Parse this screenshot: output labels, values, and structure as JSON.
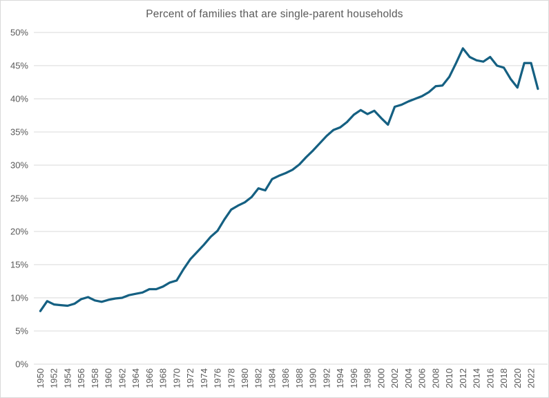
{
  "chart_data": {
    "type": "line",
    "title": "Percent of families that are single-parent households",
    "series_name": "single-parent-share",
    "x": [
      1950,
      1951,
      1952,
      1953,
      1954,
      1955,
      1956,
      1957,
      1958,
      1959,
      1960,
      1961,
      1962,
      1963,
      1964,
      1965,
      1966,
      1967,
      1968,
      1969,
      1970,
      1971,
      1972,
      1973,
      1974,
      1975,
      1976,
      1977,
      1978,
      1979,
      1980,
      1981,
      1982,
      1983,
      1984,
      1985,
      1986,
      1987,
      1988,
      1989,
      1990,
      1991,
      1992,
      1993,
      1994,
      1995,
      1996,
      1997,
      1998,
      1999,
      2000,
      2001,
      2002,
      2003,
      2004,
      2005,
      2006,
      2007,
      2008,
      2009,
      2010,
      2011,
      2012,
      2013,
      2014,
      2015,
      2016,
      2017,
      2018,
      2019,
      2020,
      2021,
      2022,
      2023
    ],
    "values": [
      8.0,
      9.5,
      9.0,
      8.9,
      8.8,
      9.1,
      9.8,
      10.1,
      9.6,
      9.4,
      9.7,
      9.9,
      10.0,
      10.4,
      10.6,
      10.8,
      11.3,
      11.3,
      11.7,
      12.3,
      12.6,
      14.3,
      15.8,
      16.9,
      18.0,
      19.2,
      20.1,
      21.8,
      23.3,
      23.9,
      24.4,
      25.2,
      26.5,
      26.2,
      27.9,
      28.4,
      28.8,
      29.3,
      30.1,
      31.2,
      32.2,
      33.3,
      34.4,
      35.3,
      35.7,
      36.5,
      37.6,
      38.3,
      37.7,
      38.2,
      37.1,
      36.1,
      38.8,
      39.1,
      39.6,
      40.0,
      40.4,
      41.0,
      41.9,
      42.0,
      43.3,
      45.4,
      47.6,
      46.3,
      45.8,
      45.6,
      46.3,
      45.0,
      44.7,
      43.0,
      41.7,
      45.4,
      45.4,
      41.5
    ],
    "xlabel": "",
    "ylabel": "",
    "ylim": [
      0,
      50
    ],
    "ytick_step": 5,
    "ytick_labels": [
      "0%",
      "5%",
      "10%",
      "15%",
      "20%",
      "25%",
      "30%",
      "35%",
      "40%",
      "45%",
      "50%"
    ],
    "xtick_labels": [
      "1950",
      "1952",
      "1954",
      "1956",
      "1958",
      "1960",
      "1962",
      "1964",
      "1966",
      "1968",
      "1970",
      "1972",
      "1974",
      "1976",
      "1978",
      "1980",
      "1982",
      "1984",
      "1986",
      "1988",
      "1990",
      "1992",
      "1994",
      "1996",
      "1998",
      "2000",
      "2002",
      "2004",
      "2006",
      "2008",
      "2010",
      "2012",
      "2014",
      "2016",
      "2018",
      "2020",
      "2022"
    ],
    "grid": "horizontal",
    "legend": "none",
    "colors": {
      "line": "#156082",
      "grid": "#d9d9d9",
      "tick_text": "#595959",
      "title_text": "#595959",
      "background": "#ffffff",
      "border": "#d9d9d9"
    }
  }
}
